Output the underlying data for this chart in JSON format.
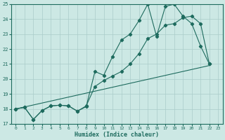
{
  "xlabel": "Humidex (Indice chaleur)",
  "xlim": [
    -0.5,
    23.5
  ],
  "ylim": [
    17,
    25
  ],
  "yticks": [
    17,
    18,
    19,
    20,
    21,
    22,
    23,
    24,
    25
  ],
  "xticks": [
    0,
    1,
    2,
    3,
    4,
    5,
    6,
    7,
    8,
    9,
    10,
    11,
    12,
    13,
    14,
    15,
    16,
    17,
    18,
    19,
    20,
    21,
    22,
    23
  ],
  "bg_color": "#cce8e4",
  "grid_color": "#aaccca",
  "line_color": "#1e6b5e",
  "series1_x": [
    0,
    1,
    2,
    3,
    4,
    5,
    6,
    7,
    8,
    9,
    10,
    11,
    12,
    13,
    14,
    15,
    16,
    17,
    18,
    19,
    20,
    21,
    22
  ],
  "series1_y": [
    18.0,
    18.1,
    17.3,
    17.9,
    18.2,
    18.25,
    18.2,
    17.85,
    18.15,
    20.5,
    20.25,
    21.5,
    22.6,
    23.0,
    23.9,
    25.0,
    22.85,
    24.85,
    25.0,
    24.2,
    23.7,
    22.2,
    21.0
  ],
  "series2_x": [
    0,
    1,
    2,
    3,
    4,
    5,
    6,
    7,
    8,
    9,
    10,
    11,
    12,
    13,
    14,
    15,
    16,
    17,
    18,
    19,
    20,
    21,
    22
  ],
  "series2_y": [
    18.0,
    18.1,
    17.3,
    17.9,
    18.2,
    18.25,
    18.2,
    17.85,
    18.2,
    19.5,
    19.9,
    20.2,
    20.5,
    21.0,
    21.7,
    22.7,
    23.0,
    23.6,
    23.7,
    24.1,
    24.2,
    23.7,
    21.0
  ],
  "series3_x": [
    0,
    22
  ],
  "series3_y": [
    18.0,
    20.9
  ]
}
